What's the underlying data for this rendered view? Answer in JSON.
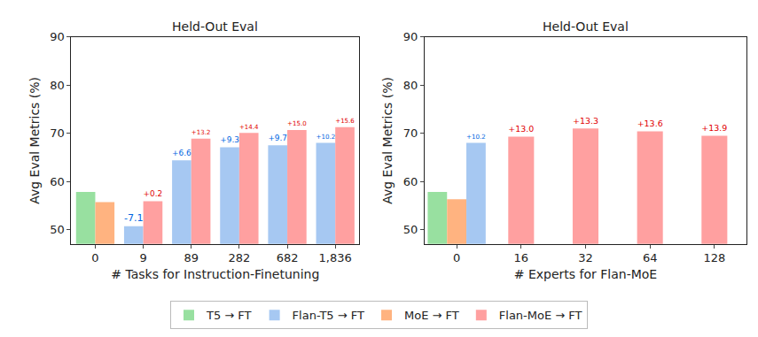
{
  "chart_data": [
    {
      "type": "bar",
      "title": "Held-Out Eval",
      "x_label": "# Tasks for Instruction-Finetuning",
      "y_label": "Avg Eval Metrics (%)",
      "categories": [
        "0",
        "9",
        "89",
        "282",
        "682",
        "1,836"
      ],
      "series": [
        {
          "name": "T5 → FT",
          "color": "#98e0a0",
          "values": [
            57.8,
            null,
            null,
            null,
            null,
            null
          ],
          "annotations": [
            null,
            null,
            null,
            null,
            null,
            null
          ]
        },
        {
          "name": "Flan-T5 → FT",
          "color": "#a6c8f2",
          "values": [
            null,
            50.7,
            64.4,
            67.1,
            67.5,
            68.0
          ],
          "annotations": [
            null,
            "-7.1",
            "+6.6",
            "+9.3",
            "+9.7",
            "+10.2"
          ]
        },
        {
          "name": "MoE → FT",
          "color": "#ffb380",
          "values": [
            55.7,
            null,
            null,
            null,
            null,
            null
          ],
          "annotations": [
            null,
            null,
            null,
            null,
            null,
            null
          ]
        },
        {
          "name": "Flan-MoE → FT",
          "color": "#ffa0a0",
          "values": [
            null,
            55.9,
            68.9,
            70.1,
            70.7,
            71.3
          ],
          "annotations": [
            null,
            "+0.2",
            "+13.2",
            "+14.4",
            "+15.0",
            "+15.6"
          ]
        }
      ],
      "ylim": [
        47,
        90
      ],
      "yticks": [
        50,
        60,
        70,
        80,
        90
      ],
      "grid": false,
      "legend": "bottom"
    },
    {
      "type": "bar",
      "title": "Held-Out Eval",
      "x_label": "# Experts for Flan-MoE",
      "y_label": "Avg Eval Metrics (%)",
      "categories": [
        "0",
        "16",
        "32",
        "64",
        "128"
      ],
      "series": [
        {
          "name": "T5 → FT",
          "color": "#98e0a0",
          "values": [
            57.8,
            null,
            null,
            null,
            null
          ],
          "annotations": [
            null,
            null,
            null,
            null,
            null
          ]
        },
        {
          "name": "MoE → FT",
          "color": "#ffb380",
          "values": [
            56.3,
            null,
            null,
            null,
            null
          ],
          "annotations": [
            null,
            null,
            null,
            null,
            null
          ]
        },
        {
          "name": "Flan-T5 → FT",
          "color": "#a6c8f2",
          "values": [
            68.0,
            null,
            null,
            null,
            null
          ],
          "annotations": [
            "+10.2",
            null,
            null,
            null,
            null
          ]
        },
        {
          "name": "Flan-MoE → FT",
          "color": "#ffa0a0",
          "values": [
            null,
            69.3,
            71.0,
            70.4,
            69.5
          ],
          "annotations": [
            null,
            "+13.0",
            "+13.3",
            "+13.6",
            "+13.9"
          ]
        }
      ],
      "ylim": [
        47,
        90
      ],
      "yticks": [
        50,
        60,
        70,
        80,
        90
      ],
      "grid": false
    }
  ]
}
